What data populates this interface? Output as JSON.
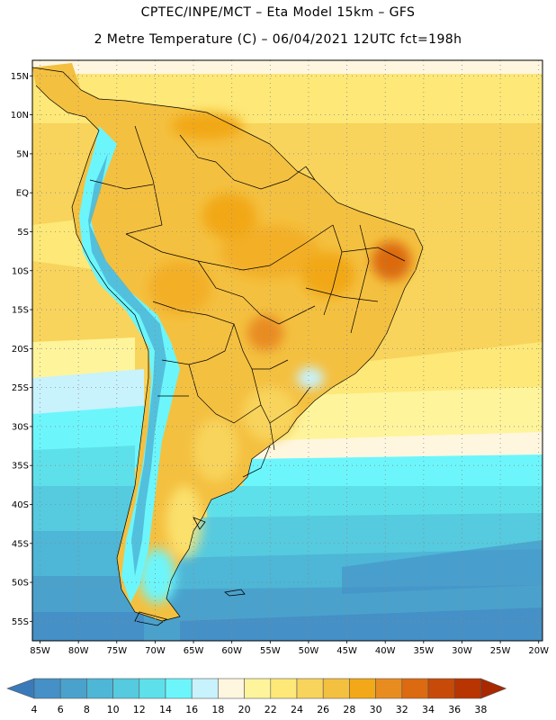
{
  "header": {
    "line1": "CPTEC/INPE/MCT –  Eta Model 15km – GFS",
    "line2": "2 Metre Temperature (C) – 06/04/2021 12UTC fct=198h"
  },
  "map": {
    "region": "South America",
    "variable": "2 Metre Temperature",
    "units": "C",
    "lon_range": [
      -86,
      -19.5
    ],
    "lat_range": [
      17,
      -57.5
    ],
    "lat_labels": [
      {
        "label": "15N",
        "lat": 15
      },
      {
        "label": "10N",
        "lat": 10
      },
      {
        "label": "5N",
        "lat": 5
      },
      {
        "label": "EQ",
        "lat": 0
      },
      {
        "label": "5S",
        "lat": -5
      },
      {
        "label": "10S",
        "lat": -10
      },
      {
        "label": "15S",
        "lat": -15
      },
      {
        "label": "20S",
        "lat": -20
      },
      {
        "label": "25S",
        "lat": -25
      },
      {
        "label": "30S",
        "lat": -30
      },
      {
        "label": "35S",
        "lat": -35
      },
      {
        "label": "40S",
        "lat": -40
      },
      {
        "label": "45S",
        "lat": -45
      },
      {
        "label": "50S",
        "lat": -50
      },
      {
        "label": "55S",
        "lat": -55
      }
    ],
    "lon_labels": [
      {
        "label": "85W",
        "lon": -85
      },
      {
        "label": "80W",
        "lon": -80
      },
      {
        "label": "75W",
        "lon": -75
      },
      {
        "label": "70W",
        "lon": -70
      },
      {
        "label": "65W",
        "lon": -65
      },
      {
        "label": "60W",
        "lon": -60
      },
      {
        "label": "55W",
        "lon": -55
      },
      {
        "label": "50W",
        "lon": -50
      },
      {
        "label": "45W",
        "lon": -45
      },
      {
        "label": "40W",
        "lon": -40
      },
      {
        "label": "35W",
        "lon": -35
      },
      {
        "label": "30W",
        "lon": -30
      },
      {
        "label": "25W",
        "lon": -25
      },
      {
        "label": "20W",
        "lon": -20
      }
    ]
  },
  "colorbar": {
    "labels": [
      "4",
      "6",
      "8",
      "10",
      "12",
      "14",
      "16",
      "18",
      "20",
      "22",
      "24",
      "26",
      "28",
      "30",
      "32",
      "34",
      "36",
      "38"
    ],
    "colors": [
      "#3a7ab8",
      "#4590c6",
      "#4aa2cc",
      "#4eb6d6",
      "#56cadf",
      "#5ee0ea",
      "#6cf6fc",
      "#c8f2fc",
      "#fff6e0",
      "#fef49c",
      "#fde878",
      "#f8d45c",
      "#f4c040",
      "#f2a818",
      "#e88c20",
      "#dc6a10",
      "#c84a08",
      "#b83400",
      "#a82800"
    ]
  }
}
